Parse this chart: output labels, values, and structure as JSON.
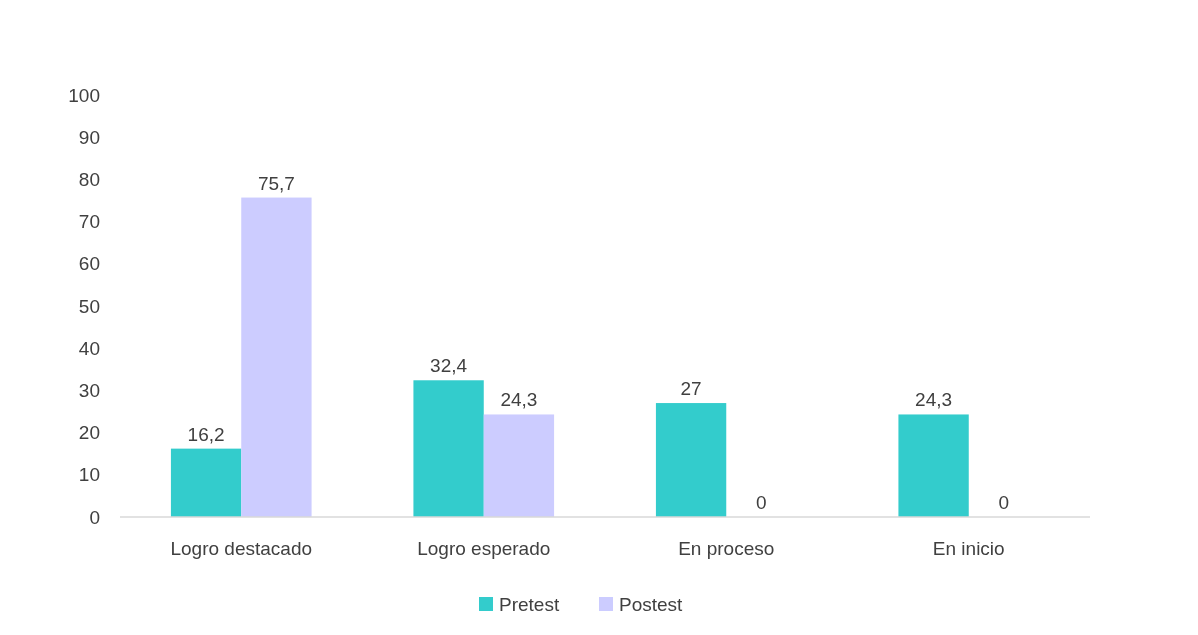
{
  "chart_data": {
    "type": "bar",
    "categories": [
      "Logro destacado",
      "Logro esperado",
      "En proceso",
      "En inicio"
    ],
    "series": [
      {
        "name": "Pretest",
        "color": "#33cccc",
        "values": [
          16.2,
          32.4,
          27,
          24.3
        ],
        "value_labels": [
          "16,2",
          "32,4",
          "27",
          "24,3"
        ]
      },
      {
        "name": "Postest",
        "color": "#ccccff",
        "values": [
          75.7,
          24.3,
          0,
          0
        ],
        "value_labels": [
          "75,7",
          "24,3",
          "0",
          "0"
        ]
      }
    ],
    "ylim": [
      0,
      100
    ],
    "yticks": [
      0,
      10,
      20,
      30,
      40,
      50,
      60,
      70,
      80,
      90,
      100
    ],
    "grid": false,
    "legend": "bottom"
  }
}
